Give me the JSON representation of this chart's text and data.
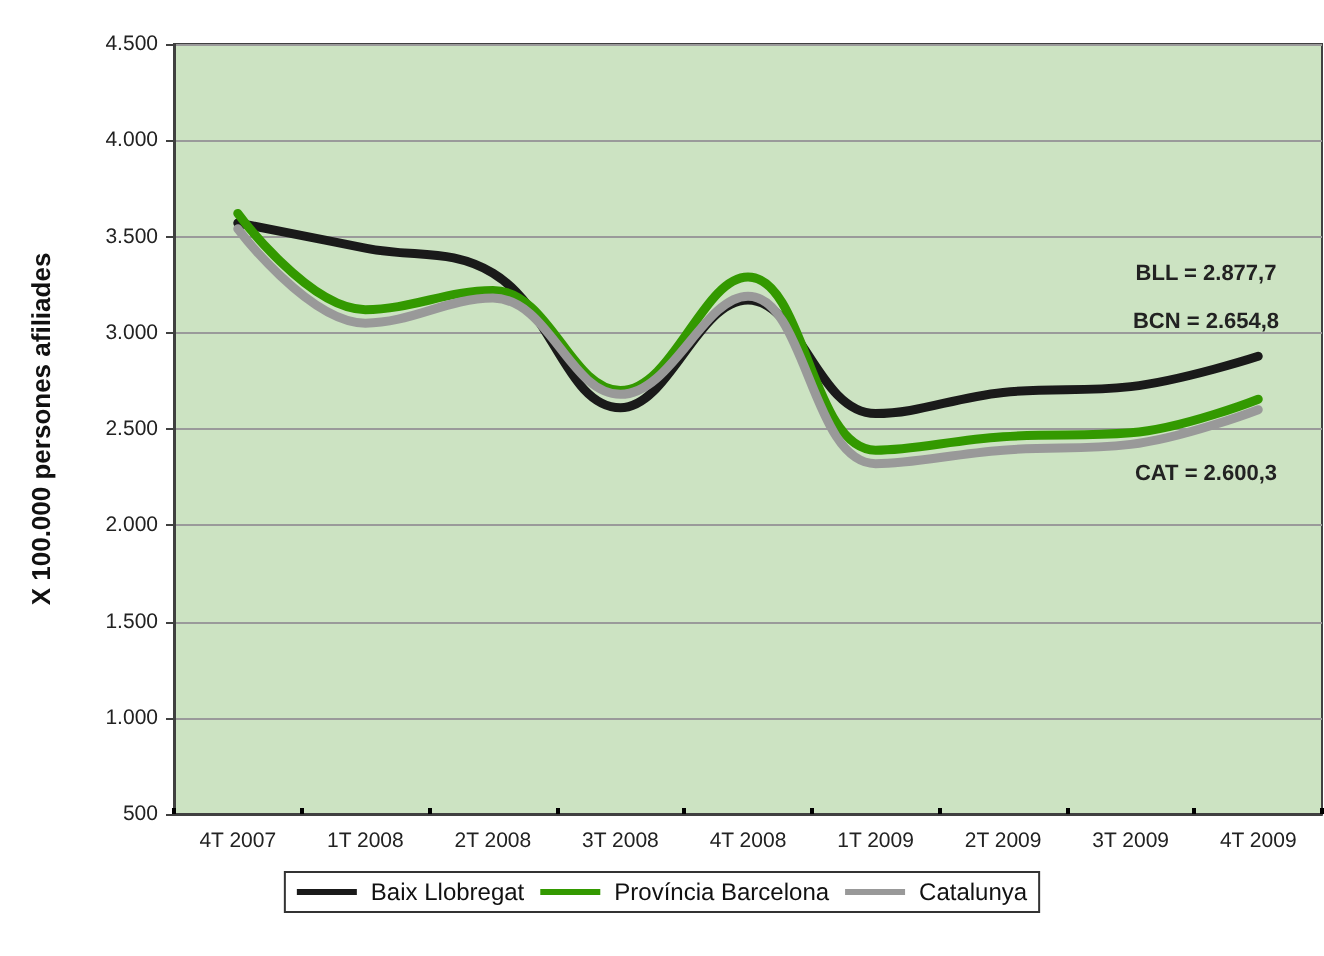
{
  "chart_data": {
    "type": "line",
    "ylabel": "X 100.000 persones afiliades",
    "categories": [
      "4T 2007",
      "1T 2008",
      "2T 2008",
      "3T 2008",
      "4T 2008",
      "1T 2009",
      "2T 2009",
      "3T 2009",
      "4T 2009"
    ],
    "series": [
      {
        "name": "Baix Llobregat",
        "color": "#1a1a1a",
        "values": [
          3570,
          3440,
          3310,
          2610,
          3170,
          2580,
          2690,
          2720,
          2877.7
        ]
      },
      {
        "name": "Província Barcelona",
        "color": "#339900",
        "values": [
          3620,
          3120,
          3220,
          2700,
          3290,
          2390,
          2460,
          2480,
          2654.8
        ]
      },
      {
        "name": "Catalunya",
        "color": "#999999",
        "values": [
          3540,
          3050,
          3180,
          2680,
          3190,
          2320,
          2390,
          2420,
          2600.3
        ]
      }
    ],
    "ylim": [
      500,
      4500
    ],
    "yticks": [
      {
        "value": 500,
        "label": "500"
      },
      {
        "value": 1000,
        "label": "1.000"
      },
      {
        "value": 1500,
        "label": "1.500"
      },
      {
        "value": 2000,
        "label": "2.000"
      },
      {
        "value": 2500,
        "label": "2.500"
      },
      {
        "value": 3000,
        "label": "3.000"
      },
      {
        "value": 3500,
        "label": "3.500"
      },
      {
        "value": 4000,
        "label": "4.000"
      },
      {
        "value": 4500,
        "label": "4.500"
      }
    ],
    "grid": "y",
    "legend": "bottom",
    "marker": "none",
    "line_style": "solid",
    "annotations": [
      "BLL = 2.877,7",
      "BCN = 2.654,8",
      "CAT = 2.600,3"
    ]
  }
}
